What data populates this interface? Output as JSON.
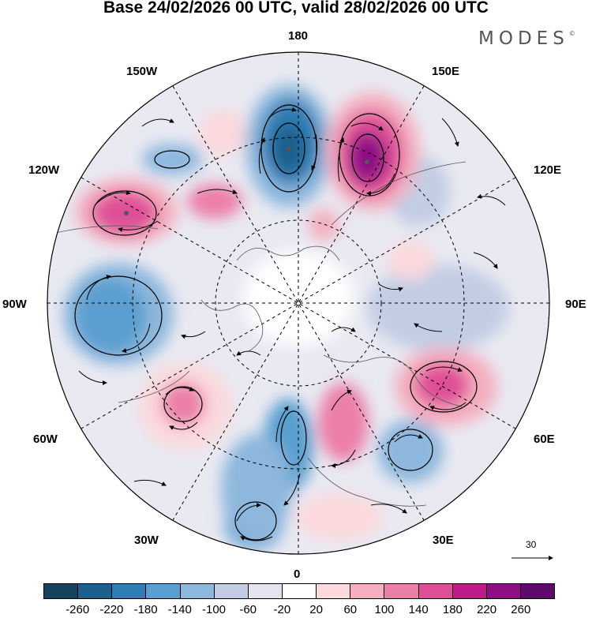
{
  "header": {
    "title": "Base 24/02/2026 00 UTC, valid 28/02/2026 00 UTC",
    "brand": "MODES",
    "brand_mark": "©"
  },
  "map": {
    "projection": "north-polar-stereographic",
    "longitude_labels": {
      "top": "180",
      "top_left": "150W",
      "top_right": "150E",
      "upper_left": "120W",
      "upper_right": "120E",
      "left": "90W",
      "right": "90E",
      "lower_left": "60W",
      "lower_right": "60E",
      "bottom_left": "30W",
      "bottom_right": "30E",
      "bottom": "0"
    },
    "reference_vector": {
      "value": "30",
      "icon": "arrow-right-icon"
    }
  },
  "colorbar": {
    "ticks": [
      "-260",
      "-220",
      "-180",
      "-140",
      "-100",
      "-60",
      "-20",
      "20",
      "60",
      "100",
      "140",
      "180",
      "220",
      "260"
    ],
    "colors": [
      "#17425e",
      "#1f5f8b",
      "#2e7db4",
      "#5a9fcf",
      "#8db7dd",
      "#c2cde4",
      "#e4e4ef",
      "#ffffff",
      "#fbd9dd",
      "#f4afc0",
      "#ec7fa8",
      "#df4f97",
      "#bd1b87",
      "#8f0e84",
      "#5e0b6b"
    ]
  }
}
